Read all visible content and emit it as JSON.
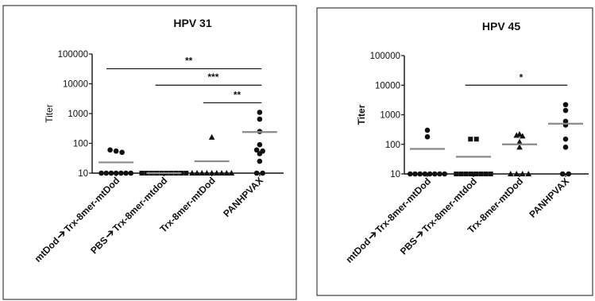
{
  "chart_data": [
    {
      "type": "scatter",
      "title": "HPV 31",
      "ylabel": "Titer",
      "yscale": "log",
      "ylim": [
        10,
        100000
      ],
      "yticks": [
        "10",
        "100",
        "1000",
        "10000",
        "100000"
      ],
      "categories": [
        [
          "mtDod",
          "Trx-8mer-mtDod"
        ],
        [
          "PBS",
          "Trx-8mer-mtdod"
        ],
        [
          "Trx-8mer-mtDod"
        ],
        [
          "PANHPVAX"
        ]
      ],
      "groups": [
        {
          "marker": "circle",
          "mean": 23,
          "values": [
            60,
            55,
            50,
            10,
            10,
            10,
            10,
            10,
            10,
            10
          ]
        },
        {
          "marker": "square",
          "mean": 10,
          "values": [
            10,
            10,
            10,
            10,
            10,
            10,
            10,
            10,
            10,
            10
          ]
        },
        {
          "marker": "triangle",
          "mean": 25,
          "values": [
            160,
            10,
            10,
            10,
            10,
            10,
            10,
            10,
            10,
            10
          ]
        },
        {
          "marker": "circle",
          "mean": 240,
          "values": [
            1100,
            650,
            250,
            90,
            60,
            55,
            45,
            25,
            10,
            10
          ]
        }
      ],
      "significance": [
        {
          "from": 0,
          "to": 3,
          "label": "**",
          "y": 32000
        },
        {
          "from": 1,
          "to": 3,
          "label": "***",
          "y": 9000
        },
        {
          "from": 2,
          "to": 3,
          "label": "**",
          "y": 2300
        }
      ],
      "grid": false
    },
    {
      "type": "scatter",
      "title": "HPV 45",
      "ylabel": "Titer",
      "yscale": "log",
      "ylim": [
        10,
        100000
      ],
      "yticks": [
        "10",
        "100",
        "1000",
        "10000",
        "100000"
      ],
      "categories": [
        [
          "mtDod",
          "Trx-8mer-mtDod"
        ],
        [
          "PBS",
          "Trx-8mer-mtdod"
        ],
        [
          "Trx-8mer-mtDod"
        ],
        [
          "PANHPVAX"
        ]
      ],
      "groups": [
        {
          "marker": "circle",
          "mean": 70,
          "values": [
            300,
            180,
            10,
            10,
            10,
            10,
            10,
            10,
            10,
            10
          ]
        },
        {
          "marker": "square",
          "mean": 38,
          "values": [
            150,
            150,
            10,
            10,
            10,
            10,
            10,
            10,
            10,
            10
          ]
        },
        {
          "marker": "triangle",
          "mean": 100,
          "values": [
            220,
            200,
            190,
            120,
            80,
            10,
            10,
            10,
            10
          ]
        },
        {
          "marker": "circle",
          "mean": 500,
          "values": [
            2200,
            1400,
            600,
            450,
            150,
            80,
            10,
            10
          ]
        }
      ],
      "significance": [
        {
          "from": 1,
          "to": 3,
          "label": "*",
          "y": 10000
        }
      ],
      "grid": false
    }
  ]
}
